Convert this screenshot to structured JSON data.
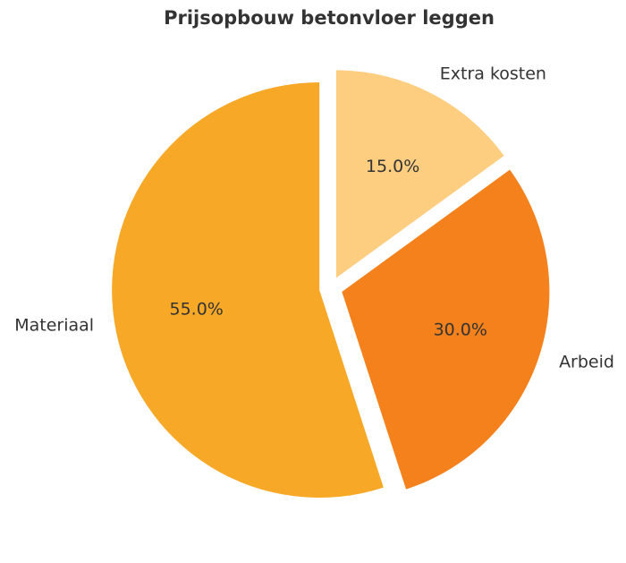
{
  "chart_data": {
    "type": "pie",
    "title": "Prijsopbouw betonvloer leggen",
    "categories": [
      "Materiaal",
      "Arbeid",
      "Extra kosten"
    ],
    "values": [
      55,
      30,
      15
    ],
    "value_labels": [
      "55.0%",
      "30.0%",
      "15.0%"
    ],
    "colors": [
      "#f7a826",
      "#f4811c",
      "#fdcd80"
    ]
  }
}
